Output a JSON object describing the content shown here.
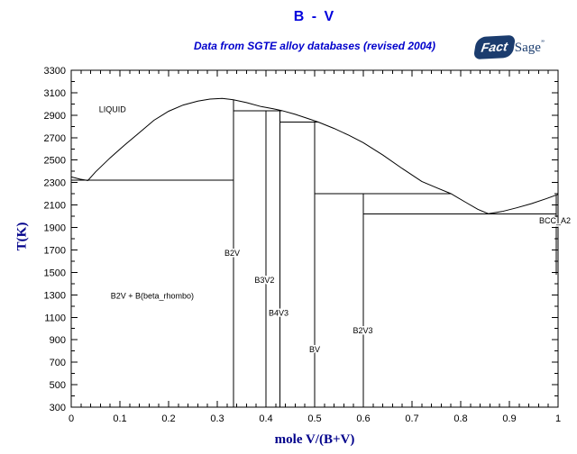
{
  "header": {
    "title": "B - V",
    "subtitle": "Data from SGTE alloy databases (revised 2004)"
  },
  "logo": {
    "fact": "Fact",
    "sage": "Sage",
    "mark": "”"
  },
  "colors": {
    "title_blue": "#0000dd",
    "subtitle_blue": "#0000cc",
    "axis_title_navy": "#00008b",
    "logo_navy": "#1b3c6e",
    "line_black": "#000000",
    "background": "#ffffff"
  },
  "chart_data": {
    "type": "line",
    "title": "B - V",
    "subtitle": "Data from SGTE alloy databases (revised 2004)",
    "xlabel": "mole V/(B+V)",
    "ylabel": "T(K)",
    "xlim": [
      0,
      1
    ],
    "ylim": [
      300,
      3300
    ],
    "x_major_step": 0.1,
    "x_minor_step": 0.02,
    "y_major_step": 200,
    "y_minor_step": 100,
    "x_tick_labels": [
      "0",
      "0.1",
      "0.2",
      "0.3",
      "0.4",
      "0.5",
      "0.6",
      "0.7",
      "0.8",
      "0.9",
      "1"
    ],
    "y_tick_labels": [
      "3300",
      "3100",
      "2900",
      "2700",
      "2500",
      "2300",
      "2100",
      "1900",
      "1700",
      "1500",
      "1300",
      "1100",
      "900",
      "700",
      "500",
      "300"
    ],
    "grid": false,
    "legend": false,
    "series": [
      {
        "name": "liquidus",
        "points": [
          [
            0,
            2350
          ],
          [
            0.018,
            2330
          ],
          [
            0.034,
            2318
          ],
          [
            0.05,
            2395
          ],
          [
            0.08,
            2520
          ],
          [
            0.11,
            2635
          ],
          [
            0.14,
            2745
          ],
          [
            0.17,
            2855
          ],
          [
            0.2,
            2935
          ],
          [
            0.23,
            2990
          ],
          [
            0.26,
            3025
          ],
          [
            0.285,
            3043
          ],
          [
            0.31,
            3050
          ],
          [
            0.333,
            3038
          ],
          [
            0.36,
            3012
          ],
          [
            0.39,
            2977
          ],
          [
            0.415,
            2957
          ],
          [
            0.433,
            2941
          ],
          [
            0.46,
            2908
          ],
          [
            0.485,
            2872
          ],
          [
            0.508,
            2838
          ],
          [
            0.54,
            2782
          ],
          [
            0.57,
            2722
          ],
          [
            0.6,
            2655
          ],
          [
            0.64,
            2545
          ],
          [
            0.68,
            2425
          ],
          [
            0.72,
            2310
          ],
          [
            0.75,
            2255
          ],
          [
            0.78,
            2201
          ],
          [
            0.81,
            2125
          ],
          [
            0.835,
            2062
          ],
          [
            0.857,
            2022
          ],
          [
            0.885,
            2042
          ],
          [
            0.915,
            2075
          ],
          [
            0.945,
            2112
          ],
          [
            0.975,
            2155
          ],
          [
            1,
            2195
          ]
        ]
      }
    ],
    "invariant_lines": [
      {
        "name": "eutectic-B-B2V",
        "T": 2320,
        "x1": 0,
        "x2": 0.3333
      },
      {
        "name": "peritectic-B3V2",
        "T": 2941,
        "x1": 0.3333,
        "x2": 0.433
      },
      {
        "name": "peritectic-BV",
        "T": 2838,
        "x1": 0.4286,
        "x2": 0.508
      },
      {
        "name": "peritectic-B2V3",
        "T": 2201,
        "x1": 0.5,
        "x2": 0.78
      },
      {
        "name": "eutectic-B2V3-BCC",
        "T": 2022,
        "x1": 0.6,
        "x2": 0.9963
      }
    ],
    "compound_lines": [
      {
        "name": "B2V",
        "x": 0.3333,
        "T1": 3038,
        "T2": 300
      },
      {
        "name": "B3V2",
        "x": 0.4,
        "T1": 2941,
        "T2": 300
      },
      {
        "name": "B4V3",
        "x": 0.4286,
        "T1": 2941,
        "T2": 300
      },
      {
        "name": "BV",
        "x": 0.5,
        "T1": 2838,
        "T2": 300
      },
      {
        "name": "B2V3",
        "x": 0.6,
        "T1": 2201,
        "T2": 300
      },
      {
        "name": "BCC_A2-solvus",
        "x": 0.9963,
        "T1": 2185,
        "T2": 1480
      }
    ],
    "region_labels": [
      {
        "text": "LIQUID",
        "x": 0.057,
        "T": 2950,
        "anchor": "start"
      },
      {
        "text": "B2V",
        "x": 0.3305,
        "T": 1670,
        "anchor": "middle"
      },
      {
        "text": "B3V2",
        "x": 0.397,
        "T": 1430,
        "anchor": "middle"
      },
      {
        "text": "B4V3",
        "x": 0.426,
        "T": 1140,
        "anchor": "middle"
      },
      {
        "text": "BV",
        "x": 0.5,
        "T": 815,
        "anchor": "middle"
      },
      {
        "text": "B2V3",
        "x": 0.599,
        "T": 980,
        "anchor": "middle"
      },
      {
        "text": "BCC_A2",
        "x": 0.961,
        "T": 1960,
        "anchor": "start"
      },
      {
        "text": "B2V + B(beta_rhombo)",
        "x": 0.081,
        "T": 1290,
        "anchor": "start"
      }
    ]
  }
}
